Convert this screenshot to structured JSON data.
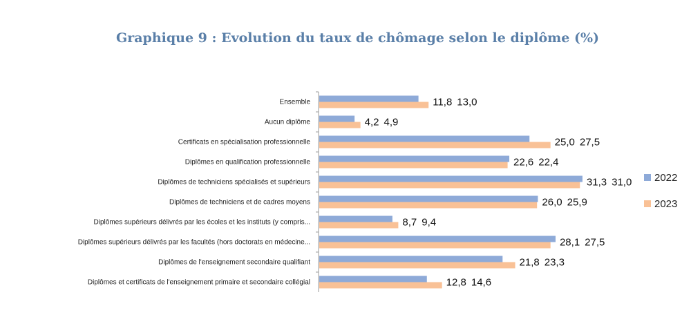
{
  "chart_data": {
    "type": "bar",
    "orientation": "horizontal",
    "title": "Graphique 9 : Evolution du taux de chômage selon le diplôme (%)",
    "categories": [
      "Ensemble",
      "Aucun diplôme",
      "Certificats en spécialisation professionnelle",
      "Diplômes en qualification professionnelle",
      "Diplômes de techniciens spécialisés et supérieurs",
      "Diplômes de techniciens et de cadres moyens",
      "Diplômes supérieurs délivrés par les écoles et les instituts (y compris...",
      "Diplômes supérieurs délivrés par les facultés (hors doctorats en médecine...",
      "Diplômes de l'enseignement secondaire qualifiant",
      "Diplômes et certificats de l'enseignement primaire et secondaire collégial"
    ],
    "series": [
      {
        "name": "2022",
        "color": "#8eaad8",
        "values": [
          11.8,
          4.2,
          25.0,
          22.6,
          31.3,
          26.0,
          8.7,
          28.1,
          21.8,
          12.8
        ],
        "labels": [
          "11,8",
          "4,2",
          "25,0",
          "22,6",
          "31,3",
          "26,0",
          "8,7",
          "28,1",
          "21,8",
          "12,8"
        ]
      },
      {
        "name": "2023",
        "color": "#f9c196",
        "values": [
          13.0,
          4.9,
          27.5,
          22.4,
          31.0,
          25.9,
          9.4,
          27.5,
          23.3,
          14.6
        ],
        "labels": [
          "13,0",
          "4,9",
          "27,5",
          "22,4",
          "31,0",
          "25,9",
          "9,4",
          "27,5",
          "23,3",
          "14,6"
        ]
      }
    ],
    "xlim": [
      0,
      35
    ],
    "grid": false,
    "legend": "right"
  }
}
